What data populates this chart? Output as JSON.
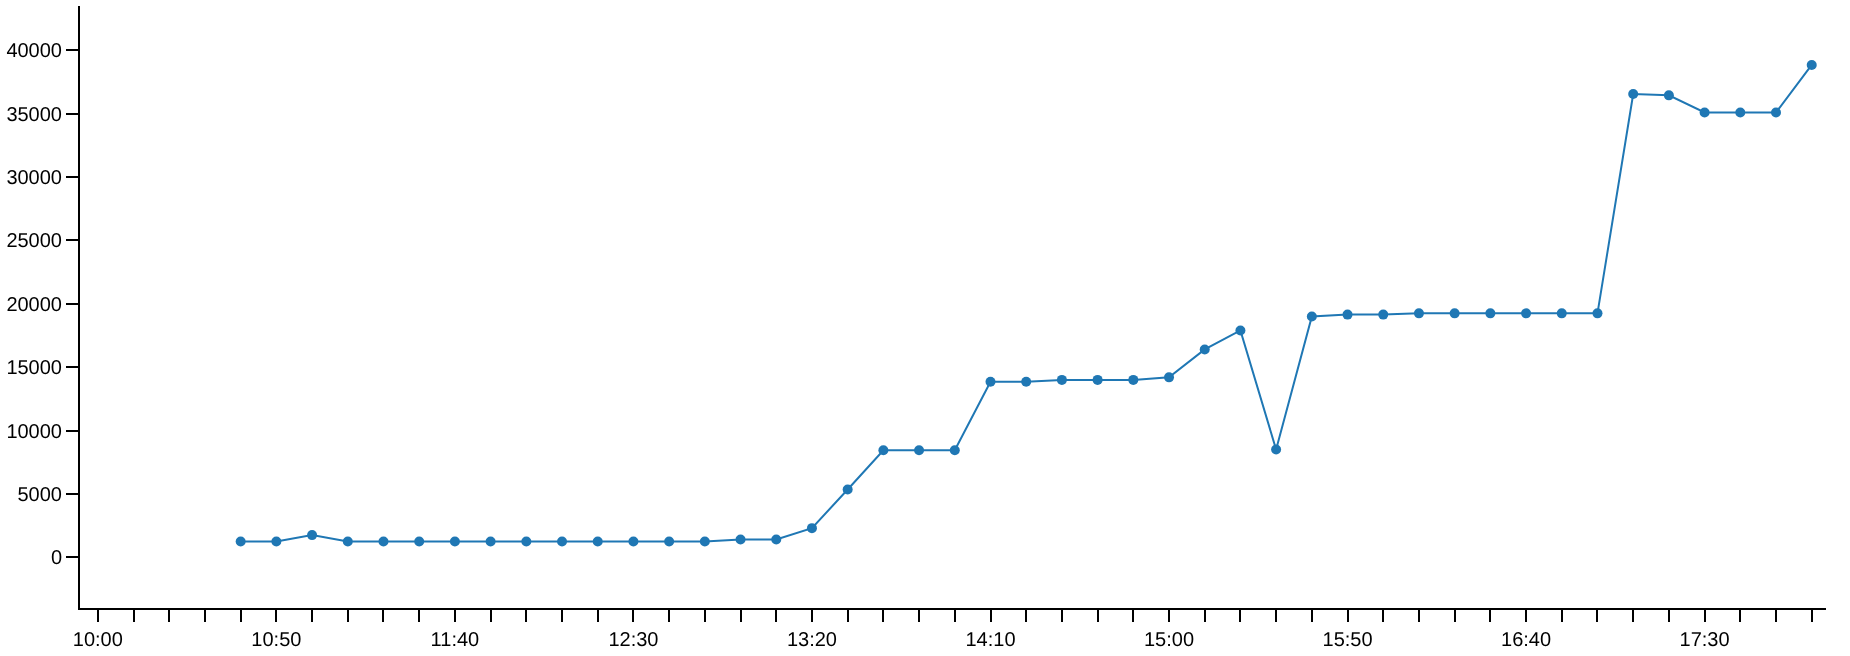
{
  "chart_data": {
    "type": "line",
    "x": [
      10.6667,
      10.8333,
      11,
      11.1667,
      11.3333,
      11.5,
      11.6667,
      11.8333,
      12,
      12.1667,
      12.3333,
      12.5,
      12.6667,
      12.8333,
      13,
      13.1667,
      13.3333,
      13.5,
      13.6667,
      13.8333,
      14,
      14.1667,
      14.3333,
      14.5,
      14.6667,
      14.8333,
      15,
      15.1667,
      15.3333,
      15.5,
      15.6667,
      15.8333,
      16,
      16.1667,
      16.3333,
      16.5,
      16.6667,
      16.8333,
      17,
      17.1667,
      17.3333,
      17.5,
      17.6667,
      17.8333,
      18
    ],
    "series": [
      {
        "color": "#1f77b4",
        "values": [
          1250,
          1250,
          1750,
          1250,
          1250,
          1250,
          1250,
          1250,
          1250,
          1250,
          1250,
          1250,
          1250,
          1250,
          1400,
          1400,
          2300,
          5350,
          8450,
          8450,
          8450,
          13850,
          13850,
          14000,
          14000,
          14000,
          14200,
          16400,
          17900,
          8500,
          19000,
          19150,
          19150,
          19250,
          19250,
          19250,
          19250,
          19250,
          19250,
          36550,
          36450,
          35100,
          35100,
          35100,
          38850
        ]
      }
    ],
    "xlim": [
      9.9167,
      18.0667
    ],
    "xticks": [
      {
        "value": 10,
        "label": "10:00"
      },
      {
        "value": 10.1667,
        "label": null
      },
      {
        "value": 10.3333,
        "label": null
      },
      {
        "value": 10.5,
        "label": null
      },
      {
        "value": 10.6667,
        "label": null
      },
      {
        "value": 10.8333,
        "label": "10:50"
      },
      {
        "value": 11,
        "label": null
      },
      {
        "value": 11.1667,
        "label": null
      },
      {
        "value": 11.3333,
        "label": null
      },
      {
        "value": 11.5,
        "label": null
      },
      {
        "value": 11.6667,
        "label": "11:40"
      },
      {
        "value": 11.8333,
        "label": null
      },
      {
        "value": 12,
        "label": null
      },
      {
        "value": 12.1667,
        "label": null
      },
      {
        "value": 12.3333,
        "label": null
      },
      {
        "value": 12.5,
        "label": "12:30"
      },
      {
        "value": 12.6667,
        "label": null
      },
      {
        "value": 12.8333,
        "label": null
      },
      {
        "value": 13,
        "label": null
      },
      {
        "value": 13.1667,
        "label": null
      },
      {
        "value": 13.3333,
        "label": "13:20"
      },
      {
        "value": 13.5,
        "label": null
      },
      {
        "value": 13.6667,
        "label": null
      },
      {
        "value": 13.8333,
        "label": null
      },
      {
        "value": 14,
        "label": null
      },
      {
        "value": 14.1667,
        "label": "14:10"
      },
      {
        "value": 14.3333,
        "label": null
      },
      {
        "value": 14.5,
        "label": null
      },
      {
        "value": 14.6667,
        "label": null
      },
      {
        "value": 14.8333,
        "label": null
      },
      {
        "value": 15,
        "label": "15:00"
      },
      {
        "value": 15.1667,
        "label": null
      },
      {
        "value": 15.3333,
        "label": null
      },
      {
        "value": 15.5,
        "label": null
      },
      {
        "value": 15.6667,
        "label": null
      },
      {
        "value": 15.8333,
        "label": "15:50"
      },
      {
        "value": 16,
        "label": null
      },
      {
        "value": 16.1667,
        "label": null
      },
      {
        "value": 16.3333,
        "label": null
      },
      {
        "value": 16.5,
        "label": null
      },
      {
        "value": 16.6667,
        "label": "16:40"
      },
      {
        "value": 16.8333,
        "label": null
      },
      {
        "value": 17,
        "label": null
      },
      {
        "value": 17.1667,
        "label": null
      },
      {
        "value": 17.3333,
        "label": null
      },
      {
        "value": 17.5,
        "label": "17:30"
      },
      {
        "value": 17.6667,
        "label": null
      },
      {
        "value": 17.8333,
        "label": null
      },
      {
        "value": 18,
        "label": null
      }
    ],
    "ylim": [
      -4000,
      43500
    ],
    "yticks": [
      0,
      5000,
      10000,
      15000,
      20000,
      25000,
      30000,
      35000,
      40000
    ],
    "marker": "circle",
    "line_style": "solid"
  }
}
